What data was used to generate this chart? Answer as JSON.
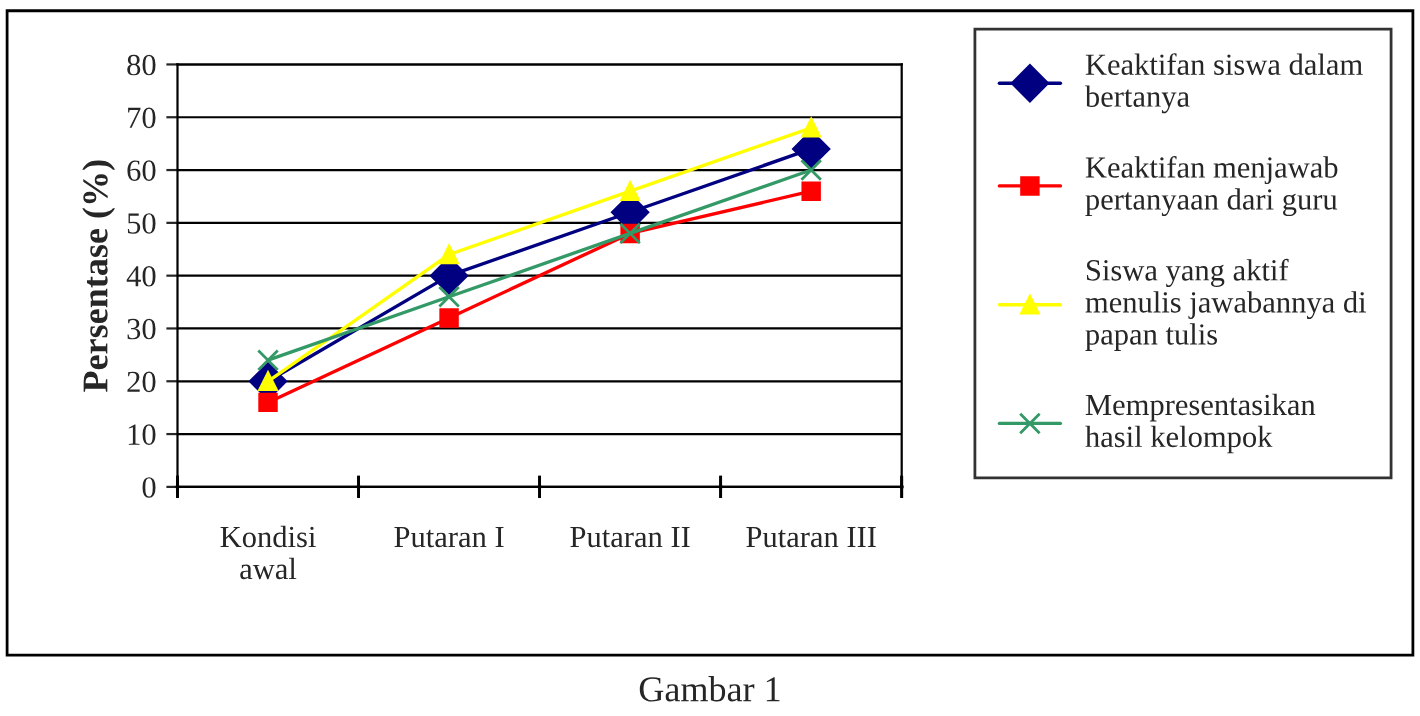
{
  "chart_data": {
    "type": "line",
    "ylabel": "Persentase (%)",
    "categories": [
      "Kondisi\nawal",
      "Putaran I",
      "Putaran II",
      "Putaran III"
    ],
    "series": [
      {
        "name": "Keaktifan siswa dalam bertanya",
        "color": "#000080",
        "marker": "diamond",
        "values": [
          20,
          40,
          52,
          64
        ]
      },
      {
        "name": "Keaktifan menjawab pertanyaan dari guru",
        "color": "#ff0000",
        "marker": "square",
        "values": [
          16,
          32,
          48,
          56
        ]
      },
      {
        "name": "Siswa yang aktif menulis jawabannya di papan tulis",
        "color": "#ffff00",
        "marker": "triangle",
        "values": [
          20,
          44,
          56,
          68
        ]
      },
      {
        "name": "Mempresentasikan hasil kelompok",
        "color": "#339966",
        "marker": "cross",
        "values": [
          24,
          36,
          48,
          60
        ]
      }
    ],
    "ylim": [
      0,
      80
    ],
    "yticks": [
      0,
      10,
      20,
      30,
      40,
      50,
      60,
      70,
      80
    ],
    "grid": "y",
    "legend": "right",
    "line_style": "solid",
    "annotations": [
      "Gambar 1"
    ]
  }
}
